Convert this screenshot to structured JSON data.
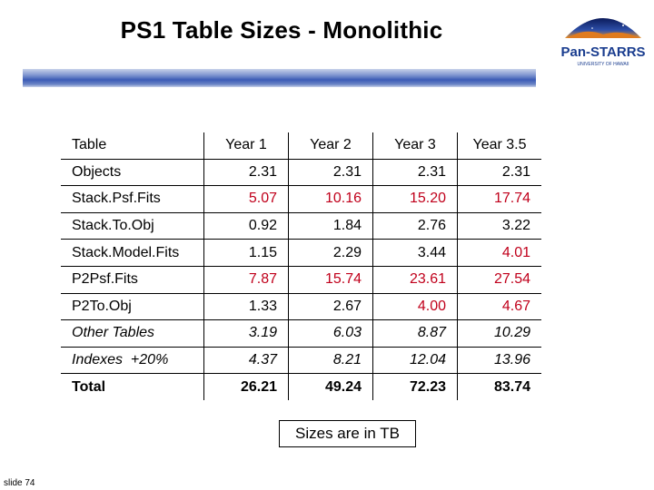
{
  "title": "PS1 Table Sizes - Monolithic",
  "logo": {
    "text": "Pan-STARRS",
    "subtext": "UNIVERSITY OF HAWAII"
  },
  "colors": {
    "red_value": "#c0001b",
    "rule_blue": "#3b5bb6",
    "logo_blue": "#1a3d8f"
  },
  "table": {
    "headers": [
      "Table",
      "Year 1",
      "Year 2",
      "Year 3",
      "Year 3.5"
    ],
    "rows": [
      {
        "name": "Objects",
        "values": [
          "2.31",
          "2.31",
          "2.31",
          "2.31"
        ]
      },
      {
        "name": "Stack.Psf.Fits",
        "values": [
          "5.07",
          "10.16",
          "15.20",
          "17.74"
        ]
      },
      {
        "name": "Stack.To.Obj",
        "values": [
          "0.92",
          "1.84",
          "2.76",
          "3.22"
        ]
      },
      {
        "name": "Stack.Model.Fits",
        "values": [
          "1.15",
          "2.29",
          "3.44",
          "4.01"
        ]
      },
      {
        "name": "P2Psf.Fits",
        "values": [
          "7.87",
          "15.74",
          "23.61",
          "27.54"
        ]
      },
      {
        "name": "P2To.Obj",
        "values": [
          "1.33",
          "2.67",
          "4.00",
          "4.67"
        ]
      },
      {
        "name": "Other Tables",
        "values": [
          "3.19",
          "6.03",
          "8.87",
          "10.29"
        ]
      },
      {
        "name": "Indexes  +20%",
        "values": [
          "4.37",
          "8.21",
          "12.04",
          "13.96"
        ]
      },
      {
        "name": "Total",
        "values": [
          "26.21",
          "49.24",
          "72.23",
          "83.74"
        ]
      }
    ]
  },
  "note": "Sizes are in TB",
  "footer": "slide 74"
}
